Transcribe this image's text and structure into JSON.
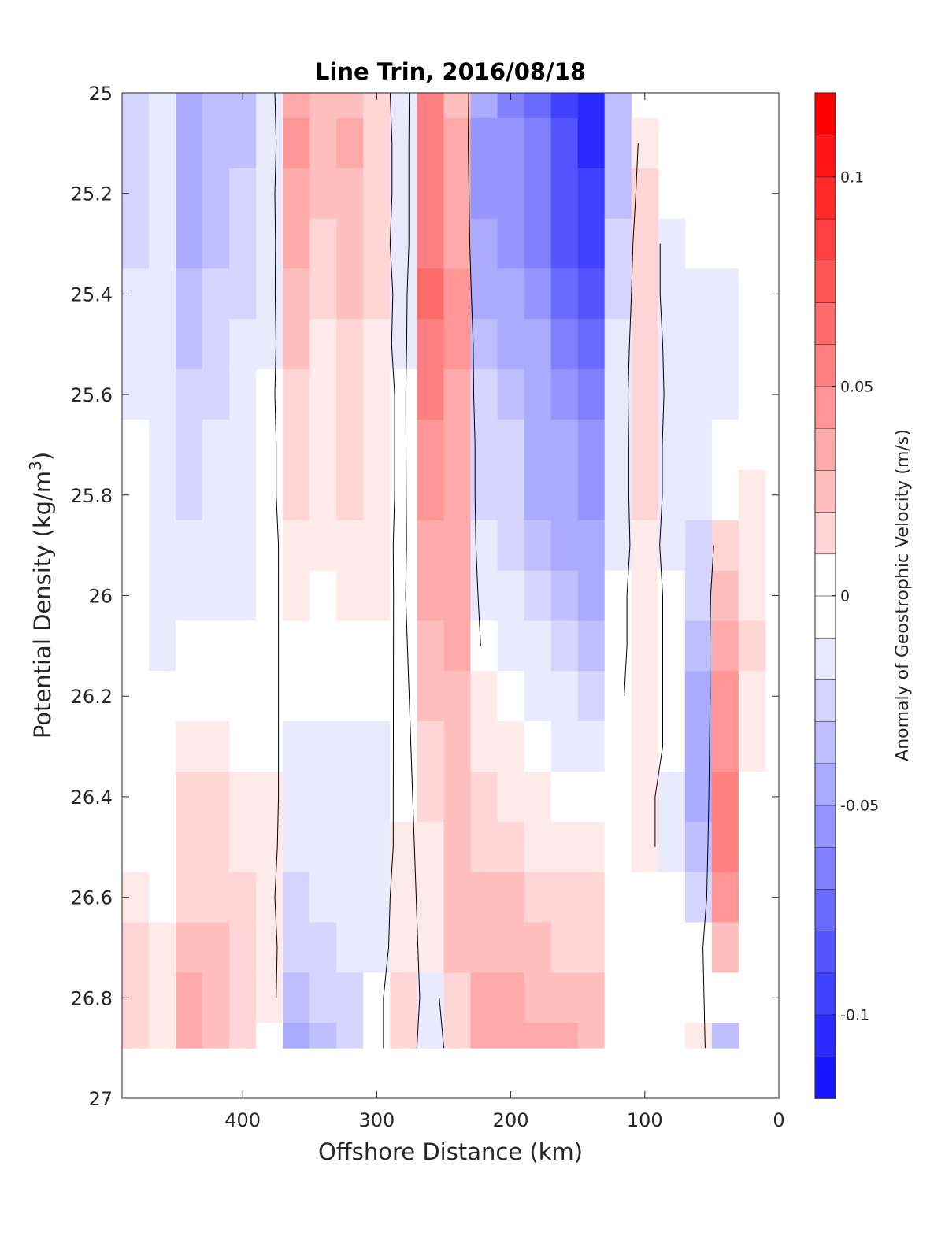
{
  "chart_data": {
    "type": "heatmap",
    "subtype": "filled-contour section",
    "title": "Line Trin, 2016/08/18",
    "xlabel": "Offshore Distance (km)",
    "ylabel": "Potential Density (kg/m",
    "ylabel_superscript": "3",
    "ylabel_close": ")",
    "x_axis": {
      "range": [
        490,
        0
      ],
      "reversed": true,
      "ticks": [
        400,
        300,
        200,
        100,
        0
      ],
      "tick_labels": [
        "400",
        "300",
        "200",
        "100",
        "0"
      ]
    },
    "y_axis": {
      "range": [
        25,
        27
      ],
      "reversed": true,
      "ticks": [
        25,
        25.2,
        25.4,
        25.6,
        25.8,
        26,
        26.2,
        26.4,
        26.6,
        26.8,
        27
      ],
      "tick_labels": [
        "25",
        "25.2",
        "25.4",
        "25.6",
        "25.8",
        "26",
        "26.2",
        "26.4",
        "26.6",
        "26.8",
        "27"
      ]
    },
    "colorbar": {
      "label": "Anomaly of Geostrophic Velocity (m/s)",
      "range": [
        -0.12,
        0.12
      ],
      "levels_step": 0.01,
      "ticks": [
        0.1,
        0.05,
        0,
        -0.05,
        -0.1
      ],
      "tick_labels": [
        "0.1",
        "0.05",
        "0",
        "-0.05",
        "-0.1"
      ],
      "colormap": "blue-white-red"
    },
    "data_extent": {
      "x": [
        480,
        20
      ],
      "y_bottom": 26.9
    },
    "x": [
      480,
      460,
      440,
      420,
      400,
      380,
      360,
      340,
      320,
      300,
      280,
      260,
      240,
      220,
      200,
      180,
      160,
      140,
      120,
      100,
      80,
      60,
      40,
      20
    ],
    "y": [
      25.0,
      25.1,
      25.2,
      25.3,
      25.4,
      25.5,
      25.6,
      25.7,
      25.8,
      25.9,
      26.0,
      26.1,
      26.2,
      26.3,
      26.4,
      26.5,
      26.6,
      26.7,
      26.8,
      26.9
    ],
    "columns": [
      {
        "x": 480,
        "v": [
          -0.02,
          -0.02,
          -0.02,
          -0.02,
          -0.015,
          -0.01,
          -0.008,
          -0.005,
          -0.005,
          -0.005,
          -0.005,
          -0.005,
          0.0,
          0.0,
          0.0,
          0.0,
          0.01,
          0.015,
          0.02,
          0.02
        ]
      },
      {
        "x": 460,
        "v": [
          -0.008,
          -0.008,
          -0.008,
          -0.008,
          -0.008,
          -0.008,
          -0.008,
          -0.008,
          -0.008,
          -0.008,
          -0.008,
          -0.008,
          -0.005,
          0.0,
          0.0,
          0.0,
          0.0,
          0.005,
          0.01,
          0.01
        ]
      },
      {
        "x": 440,
        "v": [
          -0.035,
          -0.04,
          -0.04,
          -0.035,
          -0.03,
          -0.03,
          -0.025,
          -0.02,
          -0.02,
          -0.015,
          -0.012,
          -0.005,
          0.0,
          0.01,
          0.015,
          0.015,
          0.02,
          0.025,
          0.035,
          0.04
        ]
      },
      {
        "x": 420,
        "v": [
          -0.03,
          -0.03,
          -0.03,
          -0.03,
          -0.025,
          -0.025,
          -0.02,
          -0.015,
          -0.015,
          -0.015,
          -0.012,
          -0.005,
          0.0,
          0.005,
          0.015,
          0.02,
          0.02,
          0.025,
          0.03,
          0.03
        ]
      },
      {
        "x": 400,
        "v": [
          -0.03,
          -0.03,
          -0.025,
          -0.025,
          -0.02,
          -0.015,
          -0.015,
          -0.015,
          -0.015,
          -0.01,
          -0.008,
          -0.005,
          0.0,
          0.0,
          0.005,
          0.01,
          0.015,
          0.02,
          0.02,
          0.02
        ]
      },
      {
        "x": 380,
        "v": [
          -0.01,
          -0.015,
          -0.01,
          -0.01,
          -0.008,
          -0.008,
          -0.005,
          -0.005,
          -0.005,
          -0.005,
          0.0,
          0.0,
          0.0,
          0.0,
          0.005,
          0.005,
          0.005,
          0.01,
          0.01,
          0.0
        ]
      },
      {
        "x": 360,
        "v": [
          0.04,
          0.045,
          0.04,
          0.035,
          0.03,
          0.025,
          0.02,
          0.015,
          0.015,
          0.01,
          0.005,
          0.0,
          -0.005,
          -0.008,
          -0.01,
          -0.012,
          -0.02,
          -0.025,
          -0.03,
          -0.035
        ]
      },
      {
        "x": 340,
        "v": [
          0.025,
          0.03,
          0.025,
          0.02,
          0.015,
          0.01,
          0.008,
          0.005,
          0.005,
          0.005,
          0.0,
          0.0,
          -0.005,
          -0.008,
          -0.01,
          -0.012,
          -0.015,
          -0.02,
          -0.025,
          -0.03
        ]
      },
      {
        "x": 320,
        "v": [
          0.03,
          0.035,
          0.03,
          0.03,
          0.025,
          0.02,
          0.015,
          0.015,
          0.015,
          0.01,
          0.008,
          0.0,
          -0.005,
          -0.01,
          -0.01,
          -0.012,
          -0.012,
          -0.015,
          -0.02,
          -0.02
        ]
      },
      {
        "x": 300,
        "v": [
          0.015,
          0.02,
          0.02,
          0.015,
          0.015,
          0.01,
          0.01,
          0.01,
          0.01,
          0.008,
          0.005,
          0.0,
          -0.005,
          -0.008,
          -0.008,
          -0.008,
          -0.008,
          -0.008,
          -0.005,
          -0.005
        ]
      },
      {
        "x": 280,
        "v": [
          -0.015,
          -0.015,
          -0.015,
          -0.015,
          -0.01,
          -0.008,
          -0.005,
          -0.005,
          -0.005,
          -0.005,
          -0.003,
          0.0,
          0.0,
          0.0,
          0.0,
          0.005,
          0.008,
          0.01,
          0.015,
          0.015
        ]
      },
      {
        "x": 260,
        "v": [
          0.055,
          0.06,
          0.06,
          0.06,
          0.065,
          0.06,
          0.055,
          0.05,
          0.045,
          0.04,
          0.035,
          0.03,
          0.025,
          0.02,
          0.015,
          0.01,
          0.008,
          0.005,
          -0.01,
          -0.015
        ]
      },
      {
        "x": 240,
        "v": [
          0.03,
          0.035,
          0.04,
          0.04,
          0.045,
          0.045,
          0.04,
          0.04,
          0.04,
          0.035,
          0.035,
          0.035,
          0.03,
          0.03,
          0.03,
          0.03,
          0.03,
          0.025,
          0.02,
          0.015
        ]
      },
      {
        "x": 220,
        "v": [
          -0.04,
          -0.05,
          -0.05,
          -0.045,
          -0.04,
          -0.03,
          -0.025,
          -0.02,
          -0.02,
          -0.015,
          -0.01,
          -0.005,
          0.005,
          0.01,
          0.015,
          0.02,
          0.025,
          0.03,
          0.035,
          0.035
        ]
      },
      {
        "x": 200,
        "v": [
          -0.06,
          -0.055,
          -0.05,
          -0.05,
          -0.045,
          -0.035,
          -0.03,
          -0.025,
          -0.025,
          -0.02,
          -0.015,
          -0.01,
          0.0,
          0.005,
          0.01,
          0.015,
          0.025,
          0.03,
          0.035,
          0.04
        ]
      },
      {
        "x": 180,
        "v": [
          -0.07,
          -0.065,
          -0.06,
          -0.06,
          -0.055,
          -0.045,
          -0.04,
          -0.035,
          -0.035,
          -0.03,
          -0.02,
          -0.015,
          -0.008,
          0.0,
          0.005,
          0.01,
          0.02,
          0.025,
          0.03,
          0.035
        ]
      },
      {
        "x": 160,
        "v": [
          -0.09,
          -0.085,
          -0.085,
          -0.08,
          -0.075,
          -0.065,
          -0.055,
          -0.045,
          -0.04,
          -0.035,
          -0.03,
          -0.025,
          -0.015,
          -0.008,
          0.0,
          0.005,
          0.015,
          0.02,
          0.03,
          0.035
        ]
      },
      {
        "x": 140,
        "v": [
          -0.1,
          -0.1,
          -0.095,
          -0.095,
          -0.085,
          -0.075,
          -0.065,
          -0.055,
          -0.05,
          -0.045,
          -0.035,
          -0.03,
          -0.02,
          -0.01,
          0.0,
          0.005,
          0.015,
          0.02,
          0.025,
          0.03
        ]
      },
      {
        "x": 120,
        "v": [
          -0.03,
          -0.03,
          -0.03,
          -0.025,
          -0.02,
          -0.015,
          -0.012,
          -0.01,
          -0.01,
          -0.008,
          -0.005,
          -0.005,
          -0.003,
          0.0,
          0.0,
          0.0,
          0.0,
          0.0,
          0.0,
          0.0
        ]
      },
      {
        "x": 100,
        "v": [
          null,
          0.01,
          0.015,
          0.02,
          0.02,
          0.02,
          0.02,
          0.015,
          0.015,
          0.01,
          0.01,
          0.01,
          0.01,
          0.01,
          0.005,
          0.005,
          0.0,
          -0.005,
          -0.005,
          -0.005
        ]
      },
      {
        "x": 80,
        "v": [
          null,
          null,
          null,
          -0.015,
          -0.015,
          -0.01,
          -0.008,
          -0.008,
          -0.008,
          -0.008,
          -0.005,
          -0.005,
          -0.005,
          -0.005,
          -0.008,
          -0.008,
          -0.005,
          -0.005,
          0.0,
          0.0
        ]
      },
      {
        "x": 60,
        "v": [
          null,
          null,
          null,
          null,
          -0.008,
          -0.012,
          -0.015,
          -0.015,
          -0.015,
          -0.02,
          -0.025,
          -0.03,
          -0.035,
          -0.035,
          -0.035,
          -0.03,
          -0.02,
          -0.005,
          0.0,
          0.01
        ]
      },
      {
        "x": 40,
        "v": [
          null,
          null,
          null,
          null,
          -0.015,
          -0.012,
          -0.008,
          -0.005,
          0.0,
          0.015,
          0.03,
          0.04,
          0.045,
          0.05,
          0.055,
          0.055,
          0.045,
          0.025,
          0.0,
          -0.03
        ]
      },
      {
        "x": 20,
        "v": [
          null,
          null,
          null,
          null,
          -0.005,
          -0.005,
          0.0,
          0.0,
          0.005,
          0.01,
          0.01,
          0.015,
          0.01,
          0.005,
          0.0,
          0.0,
          0.0,
          0.0,
          0.0,
          null
        ]
      }
    ]
  }
}
